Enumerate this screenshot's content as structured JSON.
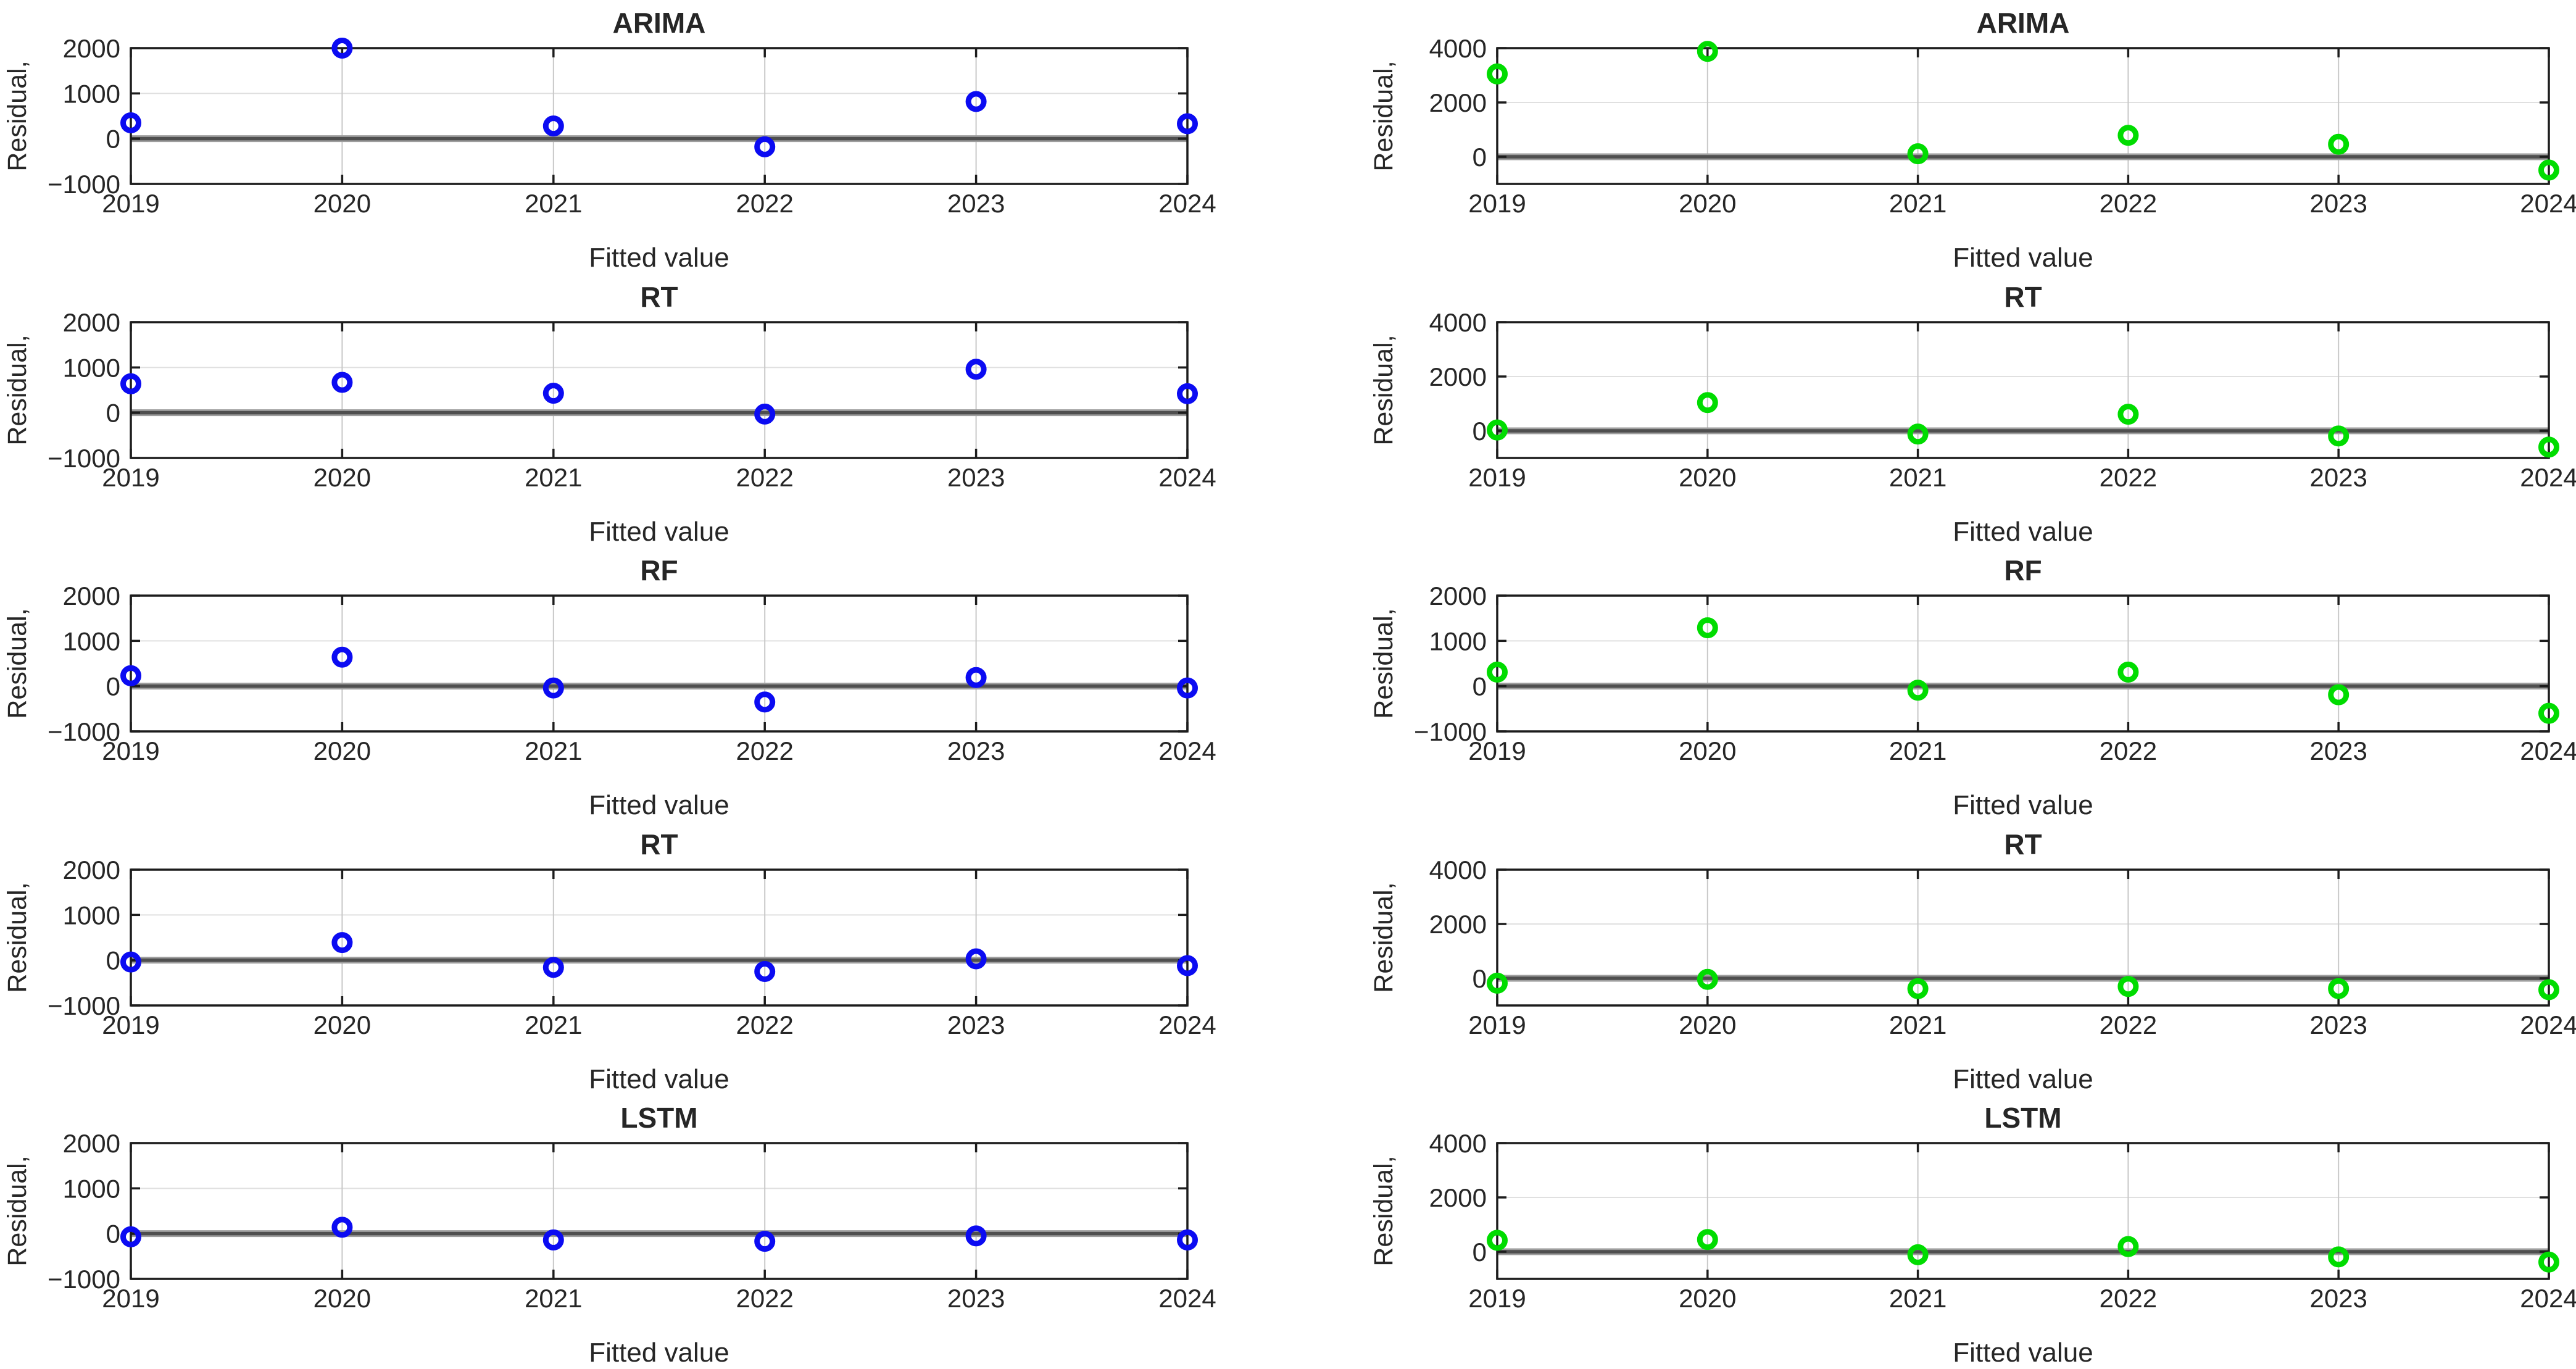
{
  "figure": {
    "xlabel": "Fitted value",
    "ylabel": "Residual,",
    "x_ticks": [
      2019,
      2020,
      2021,
      2022,
      2023,
      2024
    ],
    "x_tick_labels": [
      "2019",
      "2020",
      "2021",
      "2022",
      "2023",
      "2024"
    ],
    "colors": {
      "marker_blue": "#0b0bf2",
      "marker_green": "#00dc00",
      "zero_line": "#4f4f4f",
      "zero_line_halo": "#9e9e9e",
      "frame": "#1c1c1c",
      "grid_vertical": "#c8c8c8",
      "grid_horizontal": "#e0e0e0",
      "text": "#262626",
      "background": "#ffffff"
    }
  },
  "chart_data": [
    {
      "type": "scatter",
      "title": "ARIMA",
      "column": "left",
      "marker_color": "#0b0bf2",
      "x": [
        2019,
        2020,
        2021,
        2022,
        2023,
        2024
      ],
      "values": [
        350,
        2000,
        280,
        -180,
        820,
        330
      ],
      "ylim": [
        -1000,
        2000
      ],
      "yticks": [
        -1000,
        0,
        1000,
        2000
      ],
      "ytick_labels": [
        "−1000",
        "0",
        "1000",
        "2000"
      ],
      "xlabel": "Fitted value",
      "ylabel": "Residual,",
      "grid": true
    },
    {
      "type": "scatter",
      "title": "ARIMA",
      "column": "right",
      "marker_color": "#00dc00",
      "x": [
        2019,
        2020,
        2021,
        2022,
        2023,
        2024
      ],
      "values": [
        3050,
        3880,
        110,
        790,
        460,
        -490
      ],
      "ylim": [
        -1000,
        4000
      ],
      "yticks": [
        0,
        2000,
        4000
      ],
      "ytick_labels": [
        "0",
        "2000",
        "4000"
      ],
      "xlabel": "Fitted value",
      "ylabel": "Residual,",
      "grid": true
    },
    {
      "type": "scatter",
      "title": "RT",
      "column": "left",
      "marker_color": "#0b0bf2",
      "x": [
        2019,
        2020,
        2021,
        2022,
        2023,
        2024
      ],
      "values": [
        640,
        670,
        430,
        -30,
        960,
        420
      ],
      "ylim": [
        -1000,
        2000
      ],
      "yticks": [
        -1000,
        0,
        1000,
        2000
      ],
      "ytick_labels": [
        "−1000",
        "0",
        "1000",
        "2000"
      ],
      "xlabel": "Fitted value",
      "ylabel": "Residual,",
      "grid": true
    },
    {
      "type": "scatter",
      "title": "RT",
      "column": "right",
      "marker_color": "#00dc00",
      "x": [
        2019,
        2020,
        2021,
        2022,
        2023,
        2024
      ],
      "values": [
        30,
        1040,
        -120,
        610,
        -190,
        -600
      ],
      "ylim": [
        -1000,
        4000
      ],
      "yticks": [
        0,
        2000,
        4000
      ],
      "ytick_labels": [
        "0",
        "2000",
        "4000"
      ],
      "xlabel": "Fitted value",
      "ylabel": "Residual,",
      "grid": true
    },
    {
      "type": "scatter",
      "title": "RF",
      "column": "left",
      "marker_color": "#0b0bf2",
      "x": [
        2019,
        2020,
        2021,
        2022,
        2023,
        2024
      ],
      "values": [
        230,
        640,
        -40,
        -350,
        190,
        -40
      ],
      "ylim": [
        -1000,
        2000
      ],
      "yticks": [
        -1000,
        0,
        1000,
        2000
      ],
      "ytick_labels": [
        "−1000",
        "0",
        "1000",
        "2000"
      ],
      "xlabel": "Fitted value",
      "ylabel": "Residual,",
      "grid": true
    },
    {
      "type": "scatter",
      "title": "RF",
      "column": "right",
      "marker_color": "#00dc00",
      "x": [
        2019,
        2020,
        2021,
        2022,
        2023,
        2024
      ],
      "values": [
        310,
        1290,
        -90,
        310,
        -190,
        -600
      ],
      "ylim": [
        -1000,
        2000
      ],
      "yticks": [
        -1000,
        0,
        1000,
        2000
      ],
      "ytick_labels": [
        "−1000",
        "0",
        "1000",
        "2000"
      ],
      "xlabel": "Fitted value",
      "ylabel": "Residual,",
      "grid": true
    },
    {
      "type": "scatter",
      "title": "RT",
      "column": "left",
      "marker_color": "#0b0bf2",
      "x": [
        2019,
        2020,
        2021,
        2022,
        2023,
        2024
      ],
      "values": [
        -40,
        390,
        -160,
        -250,
        30,
        -120
      ],
      "ylim": [
        -1000,
        2000
      ],
      "yticks": [
        -1000,
        0,
        1000,
        2000
      ],
      "ytick_labels": [
        "−1000",
        "0",
        "1000",
        "2000"
      ],
      "xlabel": "Fitted value",
      "ylabel": "Residual,",
      "grid": true
    },
    {
      "type": "scatter",
      "title": "RT",
      "column": "right",
      "marker_color": "#00dc00",
      "x": [
        2019,
        2020,
        2021,
        2022,
        2023,
        2024
      ],
      "values": [
        -180,
        -40,
        -380,
        -300,
        -380,
        -420
      ],
      "ylim": [
        -1000,
        4000
      ],
      "yticks": [
        0,
        2000,
        4000
      ],
      "ytick_labels": [
        "0",
        "2000",
        "4000"
      ],
      "xlabel": "Fitted value",
      "ylabel": "Residual,",
      "grid": true
    },
    {
      "type": "scatter",
      "title": "LSTM",
      "column": "left",
      "marker_color": "#0b0bf2",
      "x": [
        2019,
        2020,
        2021,
        2022,
        2023,
        2024
      ],
      "values": [
        -70,
        140,
        -140,
        -170,
        -50,
        -140
      ],
      "ylim": [
        -1000,
        2000
      ],
      "yticks": [
        -1000,
        0,
        1000,
        2000
      ],
      "ytick_labels": [
        "−1000",
        "0",
        "1000",
        "2000"
      ],
      "xlabel": "Fitted value",
      "ylabel": "Residual,",
      "grid": true
    },
    {
      "type": "scatter",
      "title": "LSTM",
      "column": "right",
      "marker_color": "#00dc00",
      "x": [
        2019,
        2020,
        2021,
        2022,
        2023,
        2024
      ],
      "values": [
        420,
        450,
        -110,
        190,
        -190,
        -380
      ],
      "ylim": [
        -1000,
        4000
      ],
      "yticks": [
        0,
        2000,
        4000
      ],
      "ytick_labels": [
        "0",
        "2000",
        "4000"
      ],
      "xlabel": "Fitted value",
      "ylabel": "Residual,",
      "grid": true
    }
  ]
}
